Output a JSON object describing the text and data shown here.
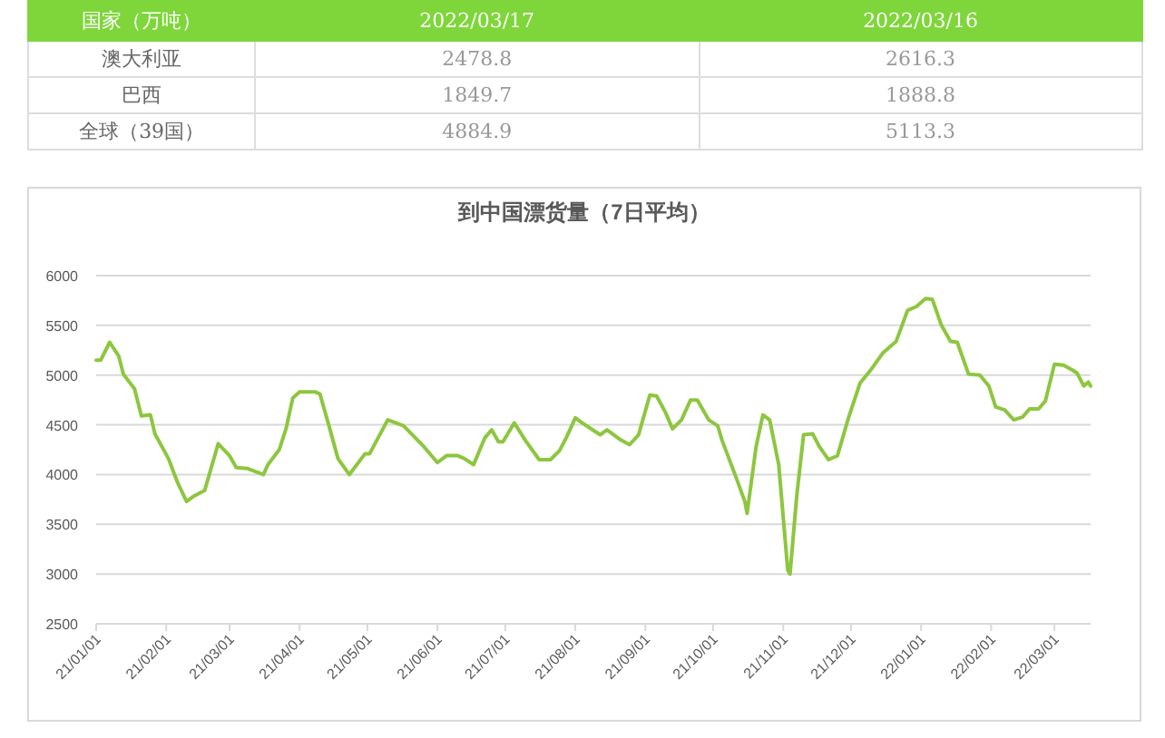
{
  "chart_data": [
    {
      "type": "other",
      "color": "#7ed63a",
      "categories": [
        "国家（万吨）",
        "2022/03/17",
        "2022/03/16"
      ],
      "y_categories": [
        "澳大利亚",
        "巴西",
        "全球（39国）"
      ],
      "cells": [
        [
          "2478.8",
          "2616.3"
        ],
        [
          "1849.7",
          "1888.8"
        ],
        [
          "4884.9",
          "5113.3"
        ]
      ]
    },
    {
      "type": "line",
      "title": "到中国漂货量（7日平均）",
      "grid": "y",
      "x": [
        "2021-01-01",
        "2021-01-03",
        "2021-01-07",
        "2021-01-11",
        "2021-01-13",
        "2021-01-18",
        "2021-01-21",
        "2021-01-25",
        "2021-01-27",
        "2021-02-02",
        "2021-02-06",
        "2021-02-10",
        "2021-02-13",
        "2021-02-18",
        "2021-02-24",
        "2021-03-01",
        "2021-03-04",
        "2021-03-09",
        "2021-03-16",
        "2021-03-18",
        "2021-03-23",
        "2021-03-26",
        "2021-03-29",
        "2021-04-01",
        "2021-04-08",
        "2021-04-10",
        "2021-04-14",
        "2021-04-18",
        "2021-04-23",
        "2021-04-30",
        "2021-05-02",
        "2021-05-10",
        "2021-05-17",
        "2021-05-26",
        "2021-06-01",
        "2021-06-05",
        "2021-06-10",
        "2021-06-13",
        "2021-06-17",
        "2021-06-22",
        "2021-06-25",
        "2021-06-28",
        "2021-06-30",
        "2021-07-05",
        "2021-07-10",
        "2021-07-16",
        "2021-07-21",
        "2021-07-25",
        "2021-07-28",
        "2021-08-01",
        "2021-08-04",
        "2021-08-08",
        "2021-08-12",
        "2021-08-15",
        "2021-08-21",
        "2021-08-25",
        "2021-08-29",
        "2021-09-03",
        "2021-09-06",
        "2021-09-10",
        "2021-09-13",
        "2021-09-17",
        "2021-09-21",
        "2021-09-24",
        "2021-09-29",
        "2021-10-03",
        "2021-10-05",
        "2021-10-11",
        "2021-10-15",
        "2021-10-16",
        "2021-10-20",
        "2021-10-23",
        "2021-10-26",
        "2021-10-30",
        "2021-11-03",
        "2021-11-04",
        "2021-11-07",
        "2021-11-10",
        "2021-11-14",
        "2021-11-17",
        "2021-11-21",
        "2021-11-25",
        "2021-11-30",
        "2021-12-05",
        "2021-12-10",
        "2021-12-15",
        "2021-12-21",
        "2021-12-26",
        "2021-12-30",
        "2022-01-03",
        "2022-01-06",
        "2022-01-10",
        "2022-01-14",
        "2022-01-17",
        "2022-01-22",
        "2022-01-27",
        "2022-01-31",
        "2022-02-03",
        "2022-02-07",
        "2022-02-11",
        "2022-02-15",
        "2022-02-18",
        "2022-02-22",
        "2022-02-25",
        "2022-03-01",
        "2022-03-05",
        "2022-03-09",
        "2022-03-11",
        "2022-03-14",
        "2022-03-16",
        "2022-03-17"
      ],
      "series": [
        {
          "color": "#8dc63f",
          "values": [
            5150,
            5150,
            5330,
            5190,
            5010,
            4860,
            4590,
            4600,
            4410,
            4160,
            3920,
            3730,
            3780,
            3840,
            4310,
            4190,
            4070,
            4060,
            4000,
            4100,
            4250,
            4460,
            4770,
            4830,
            4830,
            4810,
            4490,
            4160,
            4000,
            4210,
            4210,
            4550,
            4490,
            4280,
            4120,
            4190,
            4190,
            4160,
            4100,
            4370,
            4450,
            4330,
            4330,
            4520,
            4340,
            4150,
            4150,
            4240,
            4370,
            4570,
            4520,
            4460,
            4400,
            4450,
            4350,
            4300,
            4400,
            4800,
            4790,
            4620,
            4460,
            4550,
            4750,
            4750,
            4550,
            4490,
            4340,
            3980,
            3730,
            3610,
            4280,
            4600,
            4550,
            4100,
            3040,
            3000,
            3790,
            4400,
            4410,
            4280,
            4150,
            4190,
            4580,
            4920,
            5060,
            5220,
            5340,
            5650,
            5690,
            5770,
            5760,
            5500,
            5340,
            5330,
            5010,
            5000,
            4890,
            4680,
            4650,
            4550,
            4580,
            4660,
            4660,
            4740,
            5110,
            5100,
            5050,
            5020,
            4890,
            4930,
            4890
          ]
        }
      ],
      "xlim": [
        "2021-01-01",
        "2022-03-17"
      ],
      "xticks": [
        {
          "value": "2021-01-01",
          "label": "21/01/01"
        },
        {
          "value": "2021-02-01",
          "label": "21/02/01"
        },
        {
          "value": "2021-03-01",
          "label": "21/03/01"
        },
        {
          "value": "2021-04-01",
          "label": "21/04/01"
        },
        {
          "value": "2021-05-01",
          "label": "21/05/01"
        },
        {
          "value": "2021-06-01",
          "label": "21/06/01"
        },
        {
          "value": "2021-07-01",
          "label": "21/07/01"
        },
        {
          "value": "2021-08-01",
          "label": "21/08/01"
        },
        {
          "value": "2021-09-01",
          "label": "21/09/01"
        },
        {
          "value": "2021-10-01",
          "label": "21/10/01"
        },
        {
          "value": "2021-11-01",
          "label": "21/11/01"
        },
        {
          "value": "2021-12-01",
          "label": "21/12/01"
        },
        {
          "value": "2022-01-01",
          "label": "22/01/01"
        },
        {
          "value": "2022-02-01",
          "label": "22/02/01"
        },
        {
          "value": "2022-03-01",
          "label": "22/03/01"
        }
      ],
      "ylim": [
        2500,
        6000
      ],
      "yticks": [
        2500,
        3000,
        3500,
        4000,
        4500,
        5000,
        5500,
        6000
      ]
    }
  ]
}
